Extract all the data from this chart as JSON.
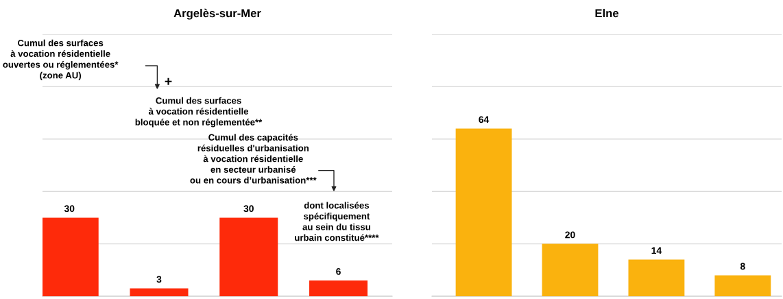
{
  "chart_data": [
    {
      "type": "bar",
      "title": "Argelès-sur-Mer",
      "categories": [
        null,
        null,
        null,
        null
      ],
      "values": [
        30,
        3,
        30,
        6
      ],
      "color": "#fe2a0a",
      "data_labels": true,
      "grid": "y",
      "ylim": [
        0,
        100
      ],
      "yticks": [
        {
          "value": 0,
          "label": null
        },
        {
          "value": 20,
          "label": null
        },
        {
          "value": 40,
          "label": null
        },
        {
          "value": 60,
          "label": null
        },
        {
          "value": 80,
          "label": null
        },
        {
          "value": 100,
          "label": null
        }
      ],
      "annotations": [
        "Cumul des surfaces\nà vocation résidentielle\nouvertes ou réglementées*\n(zone AU)",
        "Cumul des surfaces\nà vocation résidentielle\nbloquée et non réglementée**",
        "Cumul des capacités\nrésiduelles d'urbanisation\nà vocation résidentielle\nen secteur urbanisé\nou en cours d’urbanisation***",
        "dont localisées\nspécifiquement\nau sein du tissu\nurbain constitué****",
        "+"
      ]
    },
    {
      "type": "bar",
      "title": "Elne",
      "categories": [
        null,
        null,
        null,
        null
      ],
      "values": [
        64,
        20,
        14,
        8
      ],
      "color": "#fab20e",
      "data_labels": true,
      "grid": "y",
      "ylim": [
        0,
        100
      ],
      "yticks": [
        {
          "value": 0,
          "label": null
        },
        {
          "value": 20,
          "label": null
        },
        {
          "value": 40,
          "label": null
        },
        {
          "value": 60,
          "label": null
        },
        {
          "value": 80,
          "label": null
        },
        {
          "value": 100,
          "label": null
        }
      ]
    }
  ]
}
